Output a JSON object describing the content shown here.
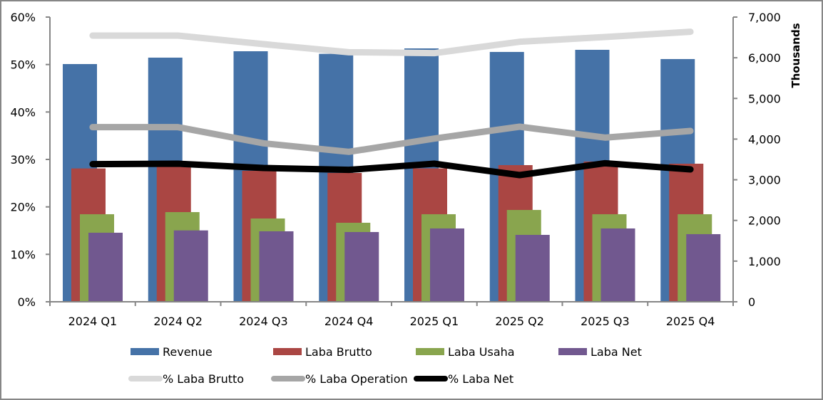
{
  "chart_data": {
    "type": "bar",
    "title": "",
    "categories": [
      "2024 Q1",
      "2024 Q2",
      "2024 Q3",
      "2024 Q4",
      "2025 Q1",
      "2025 Q2",
      "2025 Q3",
      "2025 Q4"
    ],
    "xlabel": "",
    "ylabel_left": "",
    "ylabel_right": "Thousands",
    "ylim_left": [
      0,
      0.6
    ],
    "ylim_right": [
      0,
      7000
    ],
    "yticks_left": [
      "0%",
      "10%",
      "20%",
      "30%",
      "40%",
      "50%",
      "60%"
    ],
    "yticks_right": [
      "0",
      "1,000",
      "2,000",
      "3,000",
      "4,000",
      "5,000",
      "6,000",
      "7,000"
    ],
    "grid": false,
    "legend_position": "bottom",
    "series": [
      {
        "name": "Revenue",
        "type": "bar",
        "axis": "right",
        "color": "#4572A7",
        "values": [
          5845,
          6003,
          6160,
          6096,
          6230,
          6143,
          6195,
          5968
        ]
      },
      {
        "name": "Laba Brutto",
        "type": "bar",
        "axis": "right",
        "color": "#AA4643",
        "values": [
          3279,
          3340,
          3220,
          3168,
          3280,
          3360,
          3448,
          3395
        ]
      },
      {
        "name": "Laba Usaha",
        "type": "bar",
        "axis": "right",
        "color": "#89A54E",
        "values": [
          2153,
          2205,
          2048,
          1943,
          2153,
          2258,
          2153,
          2153
        ]
      },
      {
        "name": "Laba Net",
        "type": "bar",
        "axis": "right",
        "color": "#71588F",
        "values": [
          1698,
          1755,
          1733,
          1715,
          1803,
          1645,
          1803,
          1663
        ]
      },
      {
        "name": "% Laba Brutto",
        "type": "line",
        "axis": "left",
        "color": "#D9D9D9",
        "values": [
          0.561,
          0.561,
          0.543,
          0.526,
          0.524,
          0.548,
          0.558,
          0.569
        ]
      },
      {
        "name": "% Laba Operation",
        "type": "line",
        "axis": "left",
        "color": "#A6A6A6",
        "values": [
          0.368,
          0.368,
          0.334,
          0.316,
          0.344,
          0.369,
          0.346,
          0.36
        ]
      },
      {
        "name": "% Laba Net",
        "type": "line",
        "axis": "left",
        "color": "#000000",
        "values": [
          0.29,
          0.291,
          0.282,
          0.278,
          0.291,
          0.267,
          0.292,
          0.279
        ]
      }
    ]
  }
}
